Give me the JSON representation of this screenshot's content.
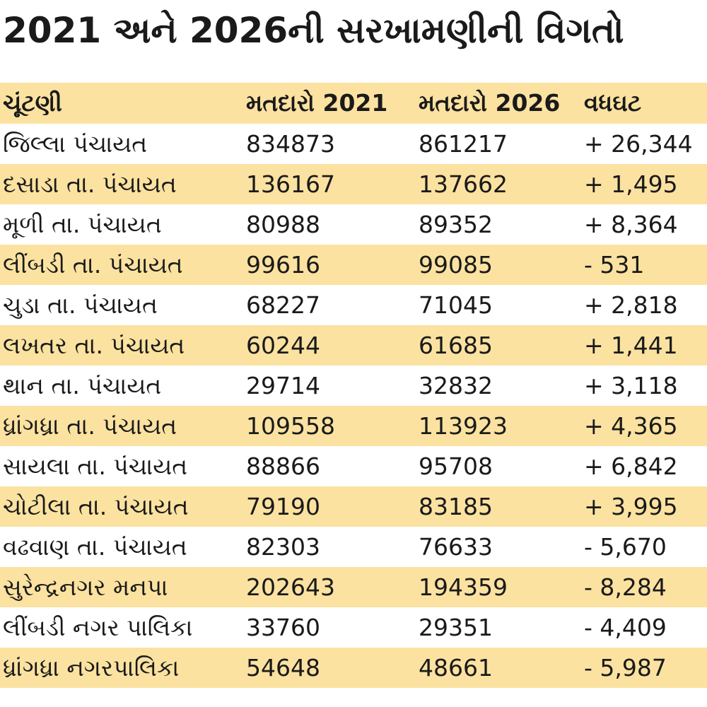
{
  "header": {
    "title": "2021 અને 2026ની સરખામણીની વિગતો"
  },
  "table": {
    "columns": [
      "ચૂંટણી",
      "મતદારો 2021",
      "મતદારો 2026",
      "વધઘટ"
    ],
    "rows": [
      [
        "જિલ્લા પંચાયત",
        "834873",
        "861217",
        "+ 26,344"
      ],
      [
        "દસાડા તા. પંચાયત",
        "136167",
        "137662",
        "+ 1,495"
      ],
      [
        "મૂળી તા. પંચાયત",
        "80988",
        "89352",
        "+ 8,364"
      ],
      [
        "લીંબડી તા. પંચાયત",
        "99616",
        "99085",
        "- 531"
      ],
      [
        "ચુડા તા. પંચાયત",
        "68227",
        "71045",
        "+ 2,818"
      ],
      [
        "લખતર તા. પંચાયત",
        "60244",
        "61685",
        "+ 1,441"
      ],
      [
        "થાન તા. પંચાયત",
        "29714",
        "32832",
        "+ 3,118"
      ],
      [
        "ધ્રાંગધ્રા તા. પંચાયત",
        "109558",
        "113923",
        "+ 4,365"
      ],
      [
        "સાયલા તા. પંચાયત",
        "88866",
        "95708",
        "+ 6,842"
      ],
      [
        "ચોટીલા તા. પંચાયત",
        "79190",
        "83185",
        "+ 3,995"
      ],
      [
        "વઢવાણ તા. પંચાયત",
        "82303",
        "76633",
        "- 5,670"
      ],
      [
        "સુરેન્દ્રનગર મનપા",
        "202643",
        "194359",
        "- 8,284"
      ],
      [
        "લીંબડી નગર પાલિકા",
        "33760",
        "29351",
        "- 4,409"
      ],
      [
        "ધ્રાંગધ્રા નગરપાલિકા",
        "54648",
        "48661",
        "- 5,987"
      ]
    ]
  }
}
